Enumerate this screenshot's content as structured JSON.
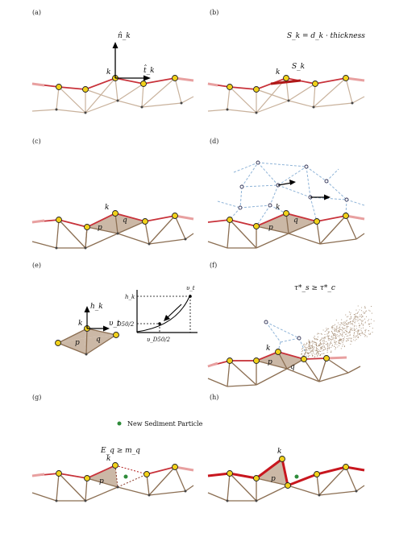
{
  "panels": [
    {
      "id": "a",
      "label": "(a)",
      "texts": {
        "normal": "n̂_k",
        "tangent": "t̂_k",
        "node": "k"
      }
    },
    {
      "id": "b",
      "label": "(b)",
      "texts": {
        "equation": "S_k = d_k · thickness",
        "surface": "S_k",
        "node": "k"
      }
    },
    {
      "id": "c",
      "label": "(c)",
      "texts": {
        "node": "k",
        "p": "p",
        "q": "q"
      }
    },
    {
      "id": "d",
      "label": "(d)",
      "texts": {
        "node": "k",
        "p": "p",
        "q": "q"
      }
    },
    {
      "id": "e",
      "label": "(e)",
      "texts": {
        "node": "k",
        "p": "p",
        "q": "q",
        "height": "h_k",
        "velocity": "υ_t",
        "graph_y_top": "h_k",
        "graph_y_mid": "D50/2",
        "graph_curve": "υ_t",
        "graph_x": "υ_D50/2"
      }
    },
    {
      "id": "f",
      "label": "(f)",
      "texts": {
        "condition": "τ*_s ≥ τ*_c",
        "node": "k",
        "p": "p",
        "q": "q"
      }
    },
    {
      "id": "g",
      "label": "(g)",
      "texts": {
        "legend": "New Sediment Particle",
        "condition": "E_q ≥ m_q",
        "node": "k",
        "p": "p"
      }
    },
    {
      "id": "h",
      "label": "(h)",
      "texts": {
        "node": "k",
        "p": "p"
      }
    }
  ],
  "colors": {
    "surface": "#c8323a",
    "surface_fade": "#e8a0a0",
    "mesh": "#8b6e52",
    "mesh_light": "#c9b29c",
    "fill": "#cbb8a6",
    "node": "#f2d21a",
    "fluid": "#8fb4d8",
    "sediment": "#a89078",
    "new_particle": "#2e8b3a"
  }
}
